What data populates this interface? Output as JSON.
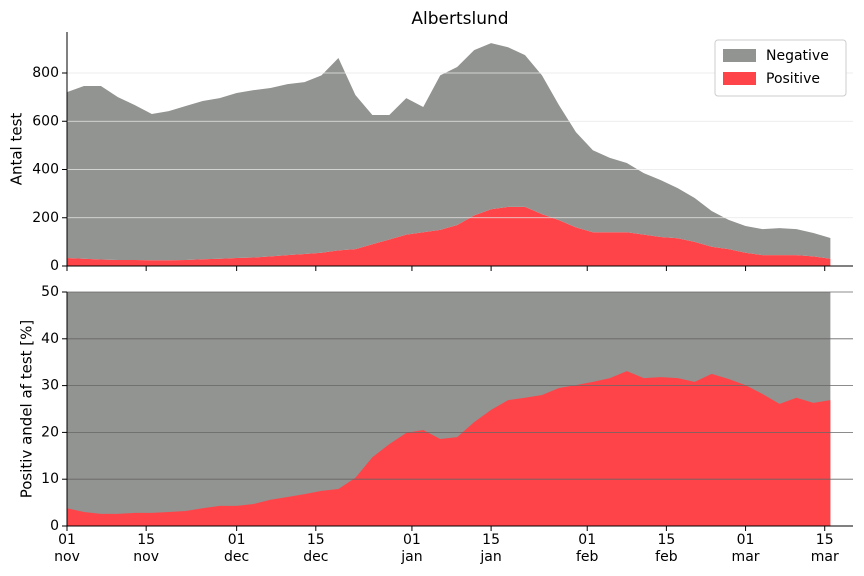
{
  "chart_data": [
    {
      "type": "area",
      "title": "Albertslund",
      "ylabel": "Antal test",
      "x": [
        "11-01",
        "11-04",
        "11-07",
        "11-10",
        "11-13",
        "11-16",
        "11-19",
        "11-22",
        "11-25",
        "11-28",
        "12-01",
        "12-04",
        "12-07",
        "12-10",
        "12-13",
        "12-16",
        "12-19",
        "12-22",
        "12-25",
        "12-28",
        "12-31",
        "01-03",
        "01-06",
        "01-09",
        "01-12",
        "01-15",
        "01-18",
        "01-21",
        "01-24",
        "01-27",
        "01-30",
        "02-02",
        "02-05",
        "02-08",
        "02-11",
        "02-14",
        "02-17",
        "02-20",
        "02-23",
        "02-26",
        "03-01",
        "03-04",
        "03-07",
        "03-10",
        "03-13",
        "03-16"
      ],
      "series": [
        {
          "name": "Negative",
          "color": "#929491",
          "values": [
            688,
            716,
            719,
            675,
            642,
            606,
            618,
            638,
            656,
            666,
            684,
            694,
            698,
            709,
            712,
            735,
            797,
            639,
            536,
            516,
            566,
            519,
            640,
            655,
            685,
            689,
            662,
            629,
            575,
            477,
            395,
            340,
            308,
            287,
            255,
            236,
            208,
            182,
            148,
            121,
            111,
            108,
            112,
            108,
            97,
            86
          ]
        },
        {
          "name": "Positive",
          "color": "#ff4449",
          "values": [
            33,
            30,
            27,
            25,
            25,
            24,
            24,
            25,
            28,
            30,
            33,
            35,
            40,
            45,
            50,
            55,
            65,
            70,
            90,
            110,
            130,
            140,
            150,
            170,
            210,
            235,
            245,
            245,
            215,
            190,
            160,
            140,
            140,
            140,
            130,
            120,
            115,
            100,
            80,
            70,
            55,
            45,
            45,
            45,
            40,
            30
          ]
        }
      ],
      "stacked": true,
      "xlim": [
        "11-01",
        "03-20"
      ],
      "xticks": [
        "11-01",
        "11-15",
        "12-01",
        "12-15",
        "01-01",
        "01-15",
        "02-01",
        "02-15",
        "03-01",
        "03-15"
      ],
      "ylim": [
        0,
        970
      ],
      "yticks": [
        0,
        200,
        400,
        600,
        800
      ],
      "grid": true,
      "legend": "upper right"
    },
    {
      "type": "area",
      "ylabel": "Positiv andel af test [%]",
      "x": [
        "11-01",
        "11-04",
        "11-07",
        "11-10",
        "11-13",
        "11-16",
        "11-19",
        "11-22",
        "11-25",
        "11-28",
        "12-01",
        "12-04",
        "12-07",
        "12-10",
        "12-13",
        "12-16",
        "12-19",
        "12-22",
        "12-25",
        "12-28",
        "12-31",
        "01-03",
        "01-06",
        "01-09",
        "01-12",
        "01-15",
        "01-18",
        "01-21",
        "01-24",
        "01-27",
        "01-30",
        "02-02",
        "02-05",
        "02-08",
        "02-11",
        "02-14",
        "02-17",
        "02-20",
        "02-23",
        "02-26",
        "03-01",
        "03-04",
        "03-07",
        "03-10",
        "03-13",
        "03-16"
      ],
      "series": [
        {
          "color": "#ff4449",
          "values": [
            3.8,
            3.0,
            2.6,
            2.6,
            2.8,
            2.8,
            3.0,
            3.2,
            3.8,
            4.3,
            4.3,
            4.7,
            5.6,
            6.2,
            6.8,
            7.5,
            7.9,
            10.3,
            14.7,
            17.5,
            19.9,
            20.5,
            18.6,
            19.0,
            22.2,
            24.8,
            26.9,
            27.4,
            28.0,
            29.5,
            30.1,
            30.8,
            31.6,
            33.1,
            31.6,
            31.8,
            31.6,
            30.8,
            32.5,
            31.4,
            30.1,
            28.2,
            26.1,
            27.4,
            26.3,
            26.9
          ]
        }
      ],
      "background_color": "#929491",
      "xlim": [
        "11-01",
        "03-20"
      ],
      "xticks": [
        {
          "value": "11-01",
          "label": "01\nnov"
        },
        {
          "value": "11-15",
          "label": "15\nnov"
        },
        {
          "value": "12-01",
          "label": "01\ndec"
        },
        {
          "value": "12-15",
          "label": "15\ndec"
        },
        {
          "value": "01-01",
          "label": "01\njan"
        },
        {
          "value": "01-15",
          "label": "15\njan"
        },
        {
          "value": "02-01",
          "label": "01\nfeb"
        },
        {
          "value": "02-15",
          "label": "15\nfeb"
        },
        {
          "value": "03-01",
          "label": "01\nmar"
        },
        {
          "value": "03-15",
          "label": "15\nmar"
        }
      ],
      "ylim": [
        0,
        50
      ],
      "yticks": [
        0,
        10,
        20,
        30,
        40,
        50
      ],
      "grid": true
    }
  ]
}
